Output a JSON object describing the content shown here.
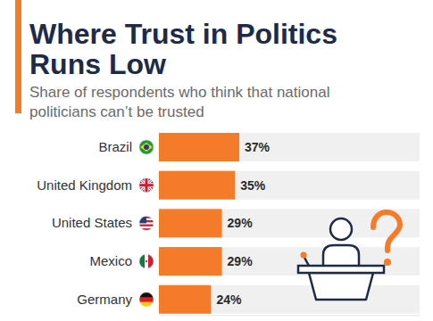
{
  "chart_data": {
    "type": "bar",
    "orientation": "horizontal",
    "title": "Where Trust in Politics Runs Low",
    "subtitle": "Share of respondents who think that national politicians can’t be trusted",
    "categories": [
      "Brazil",
      "United Kingdom",
      "United States",
      "Mexico",
      "Germany"
    ],
    "values": [
      37,
      35,
      29,
      29,
      24
    ],
    "value_labels": [
      "37%",
      "35%",
      "29%",
      "29%",
      "24%"
    ],
    "color": "#f47b2a",
    "xlim": [
      0,
      120
    ],
    "data_labels": true,
    "grid": false,
    "tick_labels": "y"
  }
}
